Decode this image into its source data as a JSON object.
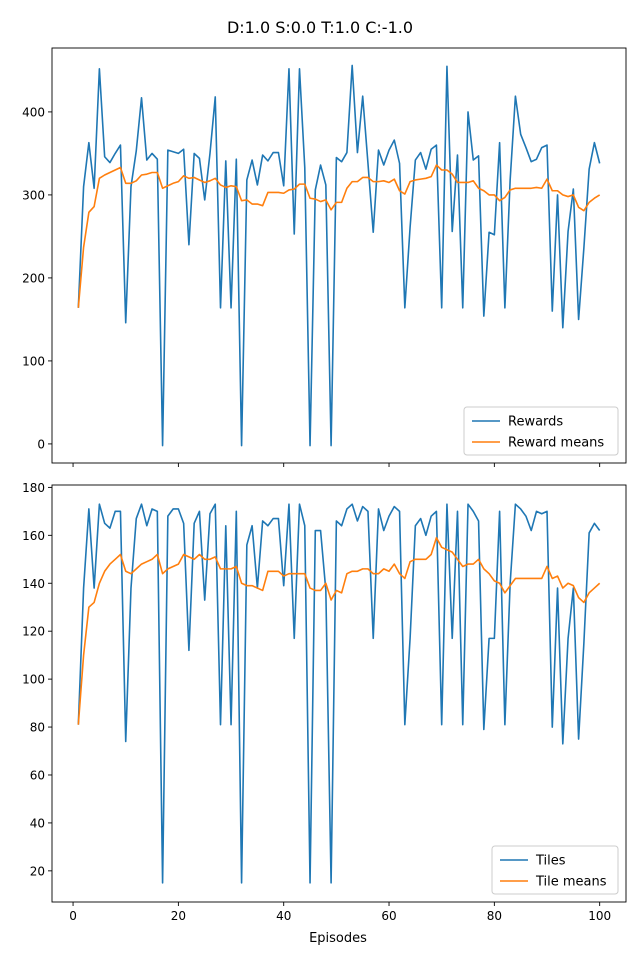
{
  "figure": {
    "suptitle": "D:1.0 S:0.0 T:1.0 C:-1.0",
    "xlabel": "Episodes"
  },
  "colors": {
    "series1": "#1f77b4",
    "series2": "#ff7f0e"
  },
  "chart_data": [
    {
      "type": "line",
      "xlim": [
        -4,
        105
      ],
      "ylim": [
        -23,
        477
      ],
      "xticks": [
        0,
        20,
        40,
        60,
        80,
        100
      ],
      "yticks": [
        0,
        100,
        200,
        300,
        400
      ],
      "legend": "lower-right",
      "x": [
        1,
        2,
        3,
        4,
        5,
        6,
        7,
        8,
        9,
        10,
        11,
        12,
        13,
        14,
        15,
        16,
        17,
        18,
        19,
        20,
        21,
        22,
        23,
        24,
        25,
        26,
        27,
        28,
        29,
        30,
        31,
        32,
        33,
        34,
        35,
        36,
        37,
        38,
        39,
        40,
        41,
        42,
        43,
        44,
        45,
        46,
        47,
        48,
        49,
        50,
        51,
        52,
        53,
        54,
        55,
        56,
        57,
        58,
        59,
        60,
        61,
        62,
        63,
        64,
        65,
        66,
        67,
        68,
        69,
        70,
        71,
        72,
        73,
        74,
        75,
        76,
        77,
        78,
        79,
        80,
        81,
        82,
        83,
        84,
        85,
        86,
        87,
        88,
        89,
        90,
        91,
        92,
        93,
        94,
        95,
        96,
        97,
        98,
        99,
        100
      ],
      "series": [
        {
          "name": "Rewards",
          "color": "#1f77b4",
          "values": [
            164,
            310,
            363,
            308,
            452,
            346,
            339,
            350,
            360,
            146,
            310,
            353,
            417,
            342,
            350,
            343,
            -2,
            354,
            352,
            350,
            355,
            240,
            350,
            344,
            294,
            350,
            418,
            164,
            341,
            164,
            343,
            -2,
            318,
            342,
            312,
            348,
            341,
            351,
            351,
            311,
            452,
            253,
            452,
            333,
            -2,
            306,
            336,
            312,
            -2,
            345,
            340,
            351,
            456,
            351,
            419,
            338,
            255,
            354,
            336,
            354,
            366,
            338,
            164,
            261,
            342,
            351,
            331,
            355,
            360,
            164,
            455,
            256,
            348,
            164,
            400,
            342,
            347,
            154,
            255,
            252,
            363,
            164,
            318,
            419,
            373,
            357,
            340,
            343,
            357,
            360,
            160,
            300,
            140,
            256,
            307,
            150,
            236,
            331,
            363,
            338
          ]
        },
        {
          "name": "Reward means",
          "color": "#ff7f0e",
          "values": [
            164,
            237,
            279,
            286,
            320,
            324,
            327,
            330,
            333,
            314,
            314,
            317,
            324,
            325,
            327,
            327,
            308,
            311,
            314,
            316,
            323,
            320,
            321,
            318,
            315,
            317,
            320,
            312,
            309,
            311,
            310,
            293,
            294,
            289,
            289,
            287,
            303,
            303,
            303,
            302,
            306,
            307,
            313,
            313,
            296,
            295,
            292,
            294,
            282,
            291,
            291,
            308,
            316,
            316,
            321,
            321,
            316,
            316,
            317,
            315,
            319,
            305,
            301,
            316,
            318,
            319,
            320,
            322,
            336,
            330,
            330,
            325,
            315,
            315,
            315,
            317,
            308,
            305,
            300,
            300,
            293,
            297,
            306,
            308,
            308,
            308,
            308,
            309,
            308,
            319,
            305,
            305,
            300,
            298,
            300,
            285,
            281,
            291,
            296,
            300
          ]
        }
      ]
    },
    {
      "type": "line",
      "xlim": [
        -4,
        105
      ],
      "ylim": [
        7,
        181
      ],
      "xticks": [
        0,
        20,
        40,
        60,
        80,
        100
      ],
      "yticks": [
        20,
        40,
        60,
        80,
        100,
        120,
        140,
        160,
        180
      ],
      "legend": "lower-right",
      "x": [
        1,
        2,
        3,
        4,
        5,
        6,
        7,
        8,
        9,
        10,
        11,
        12,
        13,
        14,
        15,
        16,
        17,
        18,
        19,
        20,
        21,
        22,
        23,
        24,
        25,
        26,
        27,
        28,
        29,
        30,
        31,
        32,
        33,
        34,
        35,
        36,
        37,
        38,
        39,
        40,
        41,
        42,
        43,
        44,
        45,
        46,
        47,
        48,
        49,
        50,
        51,
        52,
        53,
        54,
        55,
        56,
        57,
        58,
        59,
        60,
        61,
        62,
        63,
        64,
        65,
        66,
        67,
        68,
        69,
        70,
        71,
        72,
        73,
        74,
        75,
        76,
        77,
        78,
        79,
        80,
        81,
        82,
        83,
        84,
        85,
        86,
        87,
        88,
        89,
        90,
        91,
        92,
        93,
        94,
        95,
        96,
        97,
        98,
        99,
        100
      ],
      "series": [
        {
          "name": "Tiles",
          "color": "#1f77b4",
          "values": [
            81,
            138,
            171,
            138,
            173,
            165,
            163,
            170,
            170,
            74,
            138,
            167,
            173,
            164,
            171,
            170,
            15,
            168,
            171,
            171,
            165,
            112,
            165,
            170,
            133,
            169,
            173,
            81,
            164,
            81,
            170,
            15,
            156,
            164,
            138,
            166,
            164,
            167,
            167,
            139,
            173,
            117,
            173,
            164,
            15,
            162,
            162,
            137,
            15,
            166,
            164,
            171,
            173,
            166,
            172,
            170,
            117,
            171,
            162,
            168,
            172,
            170,
            81,
            117,
            164,
            167,
            160,
            168,
            170,
            81,
            173,
            117,
            170,
            81,
            173,
            170,
            166,
            79,
            117,
            117,
            170,
            81,
            140,
            173,
            171,
            168,
            162,
            170,
            169,
            170,
            80,
            138,
            73,
            117,
            138,
            75,
            115,
            161,
            165,
            162
          ]
        },
        {
          "name": "Tile means",
          "color": "#ff7f0e",
          "values": [
            81,
            110,
            130,
            132,
            140,
            145,
            148,
            150,
            152,
            145,
            144,
            146,
            148,
            149,
            150,
            152,
            144,
            146,
            147,
            148,
            152,
            151,
            150,
            152,
            150,
            150,
            151,
            146,
            146,
            146,
            147,
            140,
            139,
            139,
            138,
            137,
            145,
            145,
            145,
            143,
            144,
            144,
            144,
            144,
            138,
            137,
            137,
            140,
            133,
            137,
            136,
            144,
            145,
            145,
            146,
            146,
            144,
            144,
            146,
            145,
            148,
            144,
            142,
            149,
            150,
            150,
            150,
            152,
            159,
            155,
            154,
            153,
            150,
            147,
            148,
            148,
            150,
            146,
            144,
            141,
            140,
            136,
            139,
            142,
            142,
            142,
            142,
            142,
            142,
            147,
            142,
            143,
            138,
            140,
            139,
            134,
            132,
            136,
            138,
            140
          ]
        }
      ]
    }
  ]
}
